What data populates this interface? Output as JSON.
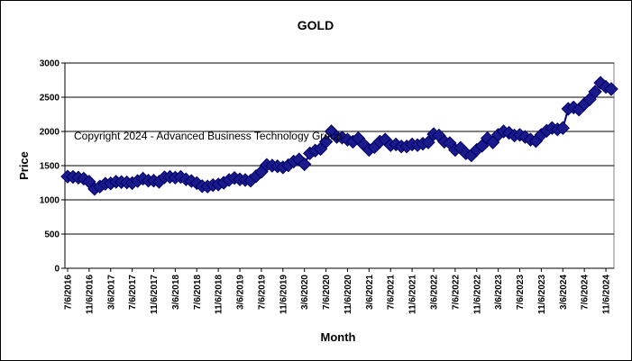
{
  "chart_data": {
    "type": "line",
    "title": "GOLD",
    "xlabel": "Month",
    "ylabel": "Price",
    "ylim": [
      0,
      3000
    ],
    "yticks": [
      0,
      500,
      1000,
      1500,
      2000,
      2500,
      3000
    ],
    "grid": "horizontal",
    "legend": "none",
    "watermark": "Copyright 2024 - Advanced Business Technology Group",
    "series_color": "#1a1a8c",
    "xtick_labels": [
      "7/6/2016",
      "11/6/2016",
      "3/6/2017",
      "7/6/2017",
      "11/6/2017",
      "3/6/2018",
      "7/6/2018",
      "11/6/2018",
      "3/6/2019",
      "7/6/2019",
      "11/6/2019",
      "3/6/2020",
      "7/6/2020",
      "11/6/2020",
      "3/6/2021",
      "7/6/2021",
      "11/6/2021",
      "3/6/2022",
      "7/6/2022",
      "11/6/2022",
      "3/6/2023",
      "7/6/2023",
      "11/6/2023",
      "3/6/2024",
      "7/6/2024",
      "11/6/2024"
    ],
    "x": [
      "7/6/2016",
      "8/6/2016",
      "9/6/2016",
      "10/6/2016",
      "11/6/2016",
      "12/6/2016",
      "1/6/2017",
      "2/6/2017",
      "3/6/2017",
      "4/6/2017",
      "5/6/2017",
      "6/6/2017",
      "7/6/2017",
      "8/6/2017",
      "9/6/2017",
      "10/6/2017",
      "11/6/2017",
      "12/6/2017",
      "1/6/2018",
      "2/6/2018",
      "3/6/2018",
      "4/6/2018",
      "5/6/2018",
      "6/6/2018",
      "7/6/2018",
      "8/6/2018",
      "9/6/2018",
      "10/6/2018",
      "11/6/2018",
      "12/6/2018",
      "1/6/2019",
      "2/6/2019",
      "3/6/2019",
      "4/6/2019",
      "5/6/2019",
      "6/6/2019",
      "7/6/2019",
      "8/6/2019",
      "9/6/2019",
      "10/6/2019",
      "11/6/2019",
      "12/6/2019",
      "1/6/2020",
      "2/6/2020",
      "3/6/2020",
      "4/6/2020",
      "5/6/2020",
      "6/6/2020",
      "7/6/2020",
      "8/6/2020",
      "9/6/2020",
      "10/6/2020",
      "11/6/2020",
      "12/6/2020",
      "1/6/2021",
      "2/6/2021",
      "3/6/2021",
      "4/6/2021",
      "5/6/2021",
      "6/6/2021",
      "7/6/2021",
      "8/6/2021",
      "9/6/2021",
      "10/6/2021",
      "11/6/2021",
      "12/6/2021",
      "1/6/2022",
      "2/6/2022",
      "3/6/2022",
      "4/6/2022",
      "5/6/2022",
      "6/6/2022",
      "7/6/2022",
      "8/6/2022",
      "9/6/2022",
      "10/6/2022",
      "11/6/2022",
      "12/6/2022",
      "1/6/2023",
      "2/6/2023",
      "3/6/2023",
      "4/6/2023",
      "5/6/2023",
      "6/6/2023",
      "7/6/2023",
      "8/6/2023",
      "9/6/2023",
      "10/6/2023",
      "11/6/2023",
      "12/6/2023",
      "1/6/2024",
      "2/6/2024",
      "3/6/2024",
      "4/6/2024",
      "5/6/2024",
      "6/6/2024",
      "7/6/2024",
      "8/6/2024",
      "9/6/2024",
      "10/6/2024",
      "11/6/2024",
      "12/6/2024"
    ],
    "values": [
      1340,
      1335,
      1325,
      1310,
      1265,
      1160,
      1195,
      1235,
      1240,
      1265,
      1260,
      1255,
      1245,
      1275,
      1310,
      1280,
      1280,
      1265,
      1330,
      1335,
      1325,
      1335,
      1300,
      1275,
      1245,
      1200,
      1195,
      1215,
      1225,
      1250,
      1290,
      1320,
      1300,
      1290,
      1280,
      1345,
      1410,
      1510,
      1500,
      1490,
      1475,
      1505,
      1560,
      1590,
      1520,
      1680,
      1720,
      1745,
      1850,
      2000,
      1920,
      1910,
      1880,
      1850,
      1900,
      1810,
      1730,
      1770,
      1850,
      1880,
      1800,
      1810,
      1780,
      1780,
      1810,
      1800,
      1820,
      1840,
      1960,
      1940,
      1850,
      1830,
      1730,
      1760,
      1680,
      1650,
      1730,
      1790,
      1900,
      1840,
      1950,
      2000,
      1980,
      1940,
      1950,
      1920,
      1880,
      1860,
      1950,
      2010,
      2050,
      2030,
      2050,
      2330,
      2350,
      2320,
      2400,
      2470,
      2580,
      2710,
      2650,
      2620
    ]
  }
}
